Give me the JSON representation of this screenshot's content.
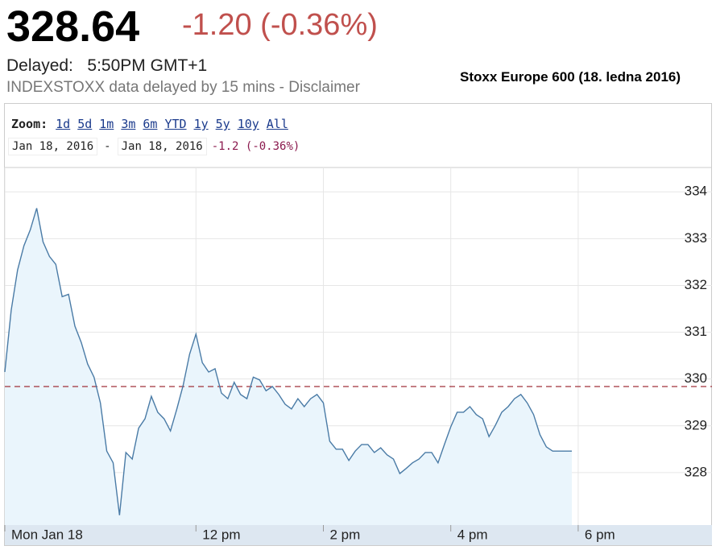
{
  "header": {
    "price": "328.64",
    "change": "-1.20 (-0.36%)",
    "delayed_label": "Delayed:",
    "delayed_time": "5:50PM GMT+1",
    "disclaimer": "INDEXSTOXX data delayed by 15 mins - Disclaimer",
    "caption": "Stoxx Europe 600 (18. ledna 2016)"
  },
  "controls": {
    "zoom_label": "Zoom:",
    "zoom_options": [
      "1d",
      "5d",
      "1m",
      "3m",
      "6m",
      "YTD",
      "1y",
      "5y",
      "10y",
      "All"
    ],
    "date_from": "Jan 18, 2016",
    "separator": "-",
    "date_to": "Jan 18, 2016",
    "range_change": "-1.2 (-0.36%)"
  },
  "chart_data": {
    "type": "area",
    "x": [
      9.0,
      9.1,
      9.2,
      9.3,
      9.4,
      9.5,
      9.6,
      9.7,
      9.8,
      9.9,
      10.0,
      10.1,
      10.2,
      10.3,
      10.4,
      10.5,
      10.6,
      10.7,
      10.8,
      10.9,
      11.0,
      11.1,
      11.2,
      11.3,
      11.4,
      11.5,
      11.6,
      11.7,
      11.8,
      11.9,
      12.0,
      12.1,
      12.2,
      12.3,
      12.4,
      12.5,
      12.6,
      12.7,
      12.8,
      12.9,
      13.0,
      13.1,
      13.2,
      13.3,
      13.4,
      13.5,
      13.6,
      13.7,
      13.8,
      13.9,
      14.0,
      14.1,
      14.2,
      14.3,
      14.4,
      14.5,
      14.6,
      14.7,
      14.8,
      14.9,
      15.0,
      15.1,
      15.2,
      15.3,
      15.4,
      15.5,
      15.6,
      15.7,
      15.8,
      15.9,
      16.0,
      16.1,
      16.2,
      16.3,
      16.4,
      16.5,
      16.6,
      16.7,
      16.8,
      16.9,
      17.0,
      17.1,
      17.2,
      17.3,
      17.4,
      17.5,
      17.6,
      17.7,
      17.8,
      17.9
    ],
    "values": [
      330.15,
      331.47,
      332.33,
      332.85,
      333.19,
      333.65,
      332.93,
      332.62,
      332.45,
      331.76,
      331.81,
      331.13,
      330.78,
      330.32,
      330.04,
      329.49,
      328.46,
      328.21,
      327.09,
      328.43,
      328.29,
      328.95,
      329.15,
      329.63,
      329.29,
      329.15,
      328.89,
      329.36,
      329.87,
      330.53,
      330.96,
      330.35,
      330.15,
      330.22,
      329.7,
      329.58,
      329.93,
      329.67,
      329.58,
      330.04,
      329.98,
      329.75,
      329.84,
      329.67,
      329.46,
      329.36,
      329.58,
      329.41,
      329.58,
      329.67,
      329.49,
      328.67,
      328.5,
      328.5,
      328.26,
      328.46,
      328.6,
      328.6,
      328.43,
      328.53,
      328.38,
      328.29,
      327.98,
      328.09,
      328.21,
      328.29,
      328.43,
      328.43,
      328.21,
      328.6,
      328.98,
      329.29,
      329.29,
      329.41,
      329.24,
      329.15,
      328.77,
      329.01,
      329.29,
      329.41,
      329.58,
      329.67,
      329.49,
      329.24,
      328.81,
      328.55,
      328.46,
      328.46,
      328.46,
      328.46
    ],
    "color": "#4a7ba6",
    "fill": "#eaf5fc",
    "xlim": [
      9,
      20.1
    ],
    "ylim": [
      326.88,
      334.52
    ],
    "xticks": [
      {
        "value": 9,
        "label": "Mon Jan 18"
      },
      {
        "value": 12,
        "label": "12 pm"
      },
      {
        "value": 14,
        "label": "2 pm"
      },
      {
        "value": 16,
        "label": "4 pm"
      },
      {
        "value": 18,
        "label": "6 pm"
      }
    ],
    "yticks": [
      328,
      329,
      330,
      331,
      332,
      333,
      334
    ],
    "grid": true,
    "previous_close": 329.84,
    "previous_close_color": "#a0303a"
  }
}
